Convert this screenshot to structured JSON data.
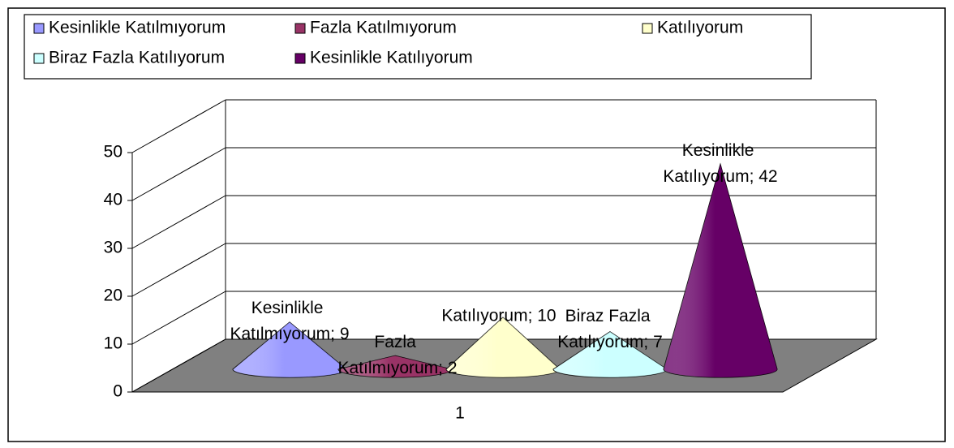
{
  "chart_data": {
    "type": "cone3d",
    "categories": [
      "1"
    ],
    "series": [
      {
        "name": "Kesinlikle Katılmıyorum",
        "color": "#9999ff",
        "values": [
          9
        ],
        "value_labels": [
          "Kesinlikle Katılmıyorum; 9"
        ]
      },
      {
        "name": "Fazla Katılmıyorum",
        "color": "#993366",
        "values": [
          2
        ],
        "value_labels": [
          "Fazla Katılmıyorum; 2"
        ]
      },
      {
        "name": "Katılıyorum",
        "color": "#ffffcc",
        "values": [
          10
        ],
        "value_labels": [
          "Katılıyorum; 10"
        ]
      },
      {
        "name": "Biraz Fazla Katılıyorum",
        "color": "#ccffff",
        "values": [
          7
        ],
        "value_labels": [
          "Biraz Fazla Katılıyorum; 7"
        ]
      },
      {
        "name": "Kesinlikle Katılıyorum",
        "color": "#660066",
        "values": [
          42
        ],
        "value_labels": [
          "Kesinlikle Katılıyorum; 42"
        ]
      }
    ],
    "ylim": [
      0,
      50
    ],
    "yticks": [
      0,
      10,
      20,
      30,
      40,
      50
    ],
    "grid": true,
    "legend": "top"
  }
}
